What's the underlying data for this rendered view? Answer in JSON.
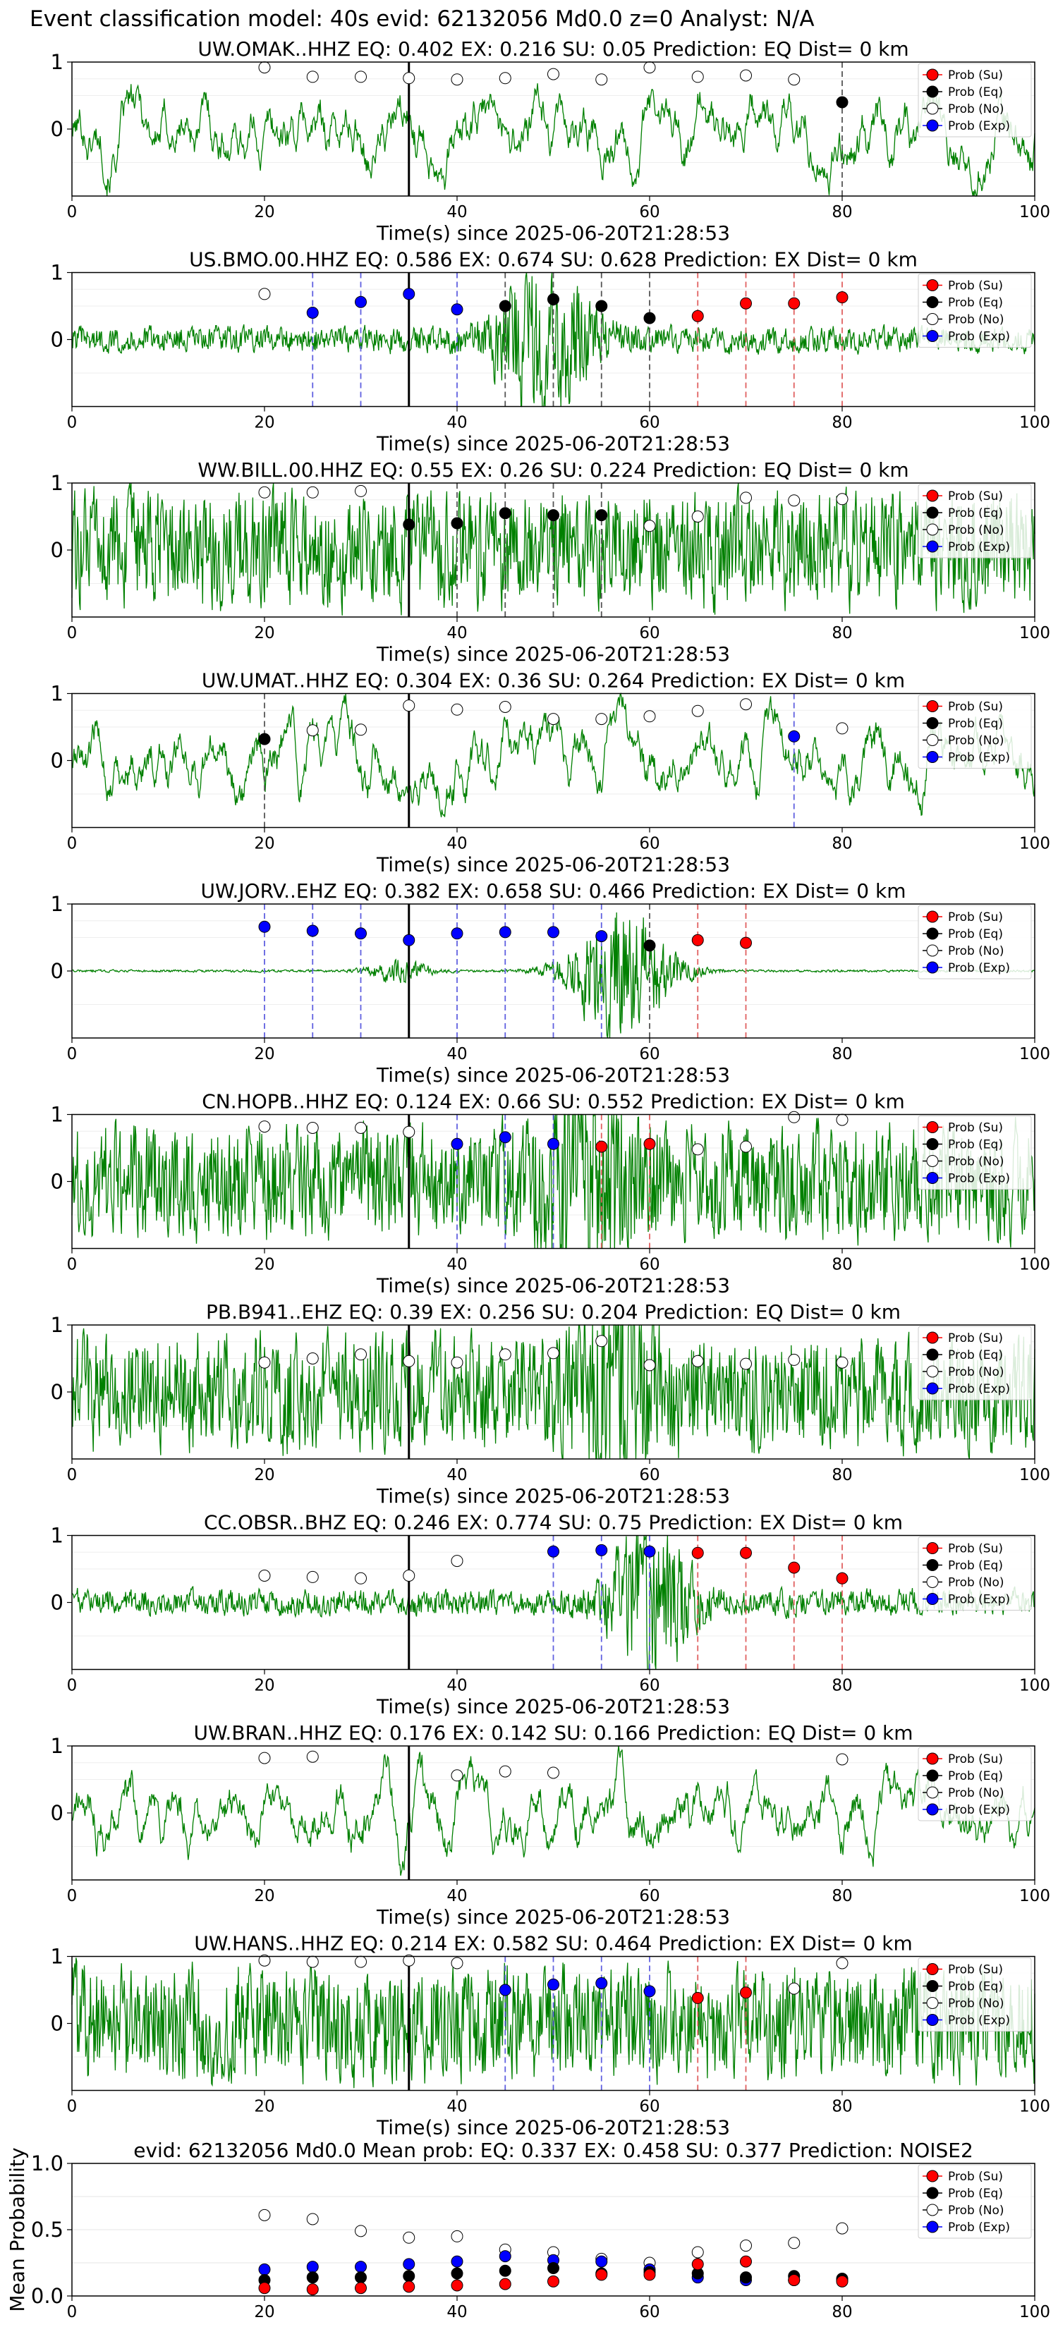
{
  "figure": {
    "suptitle": "Event classification model: 40s evid: 62132056 Md0.0 z=0 Analyst: N/A"
  },
  "legend_labels": [
    "Prob (Su)",
    "Prob (Eq)",
    "Prob (No)",
    "Prob (Exp)"
  ],
  "colors": {
    "waveform": "#008000",
    "su": "#ff0000",
    "eq": "#000000",
    "no": "#ffffff",
    "exp": "#0000ff",
    "su_line": "#e06060",
    "eq_line": "#555555",
    "exp_line": "#6060e0"
  },
  "chart_data": [
    {
      "type": "line",
      "station": "UW.OMAK..HHZ",
      "title": "UW.OMAK..HHZ   EQ: 0.402  EX: 0.216  SU: 0.05   Prediction: EQ    Dist= 0 km",
      "xlabel": "Time(s) since 2025-06-20T21:28:53",
      "xlim": [
        0,
        100
      ],
      "ylim": [
        -1,
        1
      ],
      "xticks": [
        "0",
        "20",
        "40",
        "60",
        "80",
        "100"
      ],
      "yticks": [
        "1",
        "0"
      ],
      "event_line_x": 35,
      "waveform": {
        "style": "mid",
        "bursts": []
      },
      "points": [
        {
          "x": 20,
          "y": 0.92,
          "cls": "no"
        },
        {
          "x": 25,
          "y": 0.78,
          "cls": "no"
        },
        {
          "x": 30,
          "y": 0.78,
          "cls": "no"
        },
        {
          "x": 35,
          "y": 0.76,
          "cls": "no"
        },
        {
          "x": 40,
          "y": 0.74,
          "cls": "no"
        },
        {
          "x": 45,
          "y": 0.76,
          "cls": "no"
        },
        {
          "x": 50,
          "y": 0.82,
          "cls": "no"
        },
        {
          "x": 55,
          "y": 0.74,
          "cls": "no"
        },
        {
          "x": 60,
          "y": 0.92,
          "cls": "no"
        },
        {
          "x": 65,
          "y": 0.78,
          "cls": "no"
        },
        {
          "x": 70,
          "y": 0.8,
          "cls": "no"
        },
        {
          "x": 75,
          "y": 0.74,
          "cls": "no"
        },
        {
          "x": 80,
          "y": 0.4,
          "cls": "eq"
        }
      ]
    },
    {
      "type": "line",
      "station": "US.BMO.00.HHZ",
      "title": "US.BMO.00.HHZ   EQ: 0.586  EX: 0.674  SU: 0.628   Prediction: EX    Dist= 0 km",
      "xlabel": "Time(s) since 2025-06-20T21:28:53",
      "xlim": [
        0,
        100
      ],
      "ylim": [
        -1,
        1
      ],
      "xticks": [
        "0",
        "20",
        "40",
        "60",
        "80",
        "100"
      ],
      "yticks": [
        "1",
        "0"
      ],
      "event_line_x": 35,
      "waveform": {
        "style": "quiet",
        "bursts": [
          {
            "center": 49,
            "width": 5,
            "amp": 0.9
          }
        ]
      },
      "points": [
        {
          "x": 20,
          "y": 0.68,
          "cls": "no"
        },
        {
          "x": 25,
          "y": 0.4,
          "cls": "exp"
        },
        {
          "x": 30,
          "y": 0.56,
          "cls": "exp"
        },
        {
          "x": 35,
          "y": 0.68,
          "cls": "exp"
        },
        {
          "x": 40,
          "y": 0.45,
          "cls": "exp"
        },
        {
          "x": 45,
          "y": 0.5,
          "cls": "eq"
        },
        {
          "x": 50,
          "y": 0.6,
          "cls": "eq"
        },
        {
          "x": 55,
          "y": 0.5,
          "cls": "eq"
        },
        {
          "x": 60,
          "y": 0.32,
          "cls": "eq"
        },
        {
          "x": 65,
          "y": 0.35,
          "cls": "su"
        },
        {
          "x": 70,
          "y": 0.54,
          "cls": "su"
        },
        {
          "x": 75,
          "y": 0.54,
          "cls": "su"
        },
        {
          "x": 80,
          "y": 0.63,
          "cls": "su"
        }
      ]
    },
    {
      "type": "line",
      "station": "WW.BILL.00.HHZ",
      "title": "WW.BILL.00.HHZ   EQ: 0.55  EX: 0.26  SU: 0.224   Prediction: EQ    Dist= 0 km",
      "xlabel": "Time(s) since 2025-06-20T21:28:53",
      "xlim": [
        0,
        100
      ],
      "ylim": [
        -1,
        1
      ],
      "xticks": [
        "0",
        "20",
        "40",
        "60",
        "80",
        "100"
      ],
      "yticks": [
        "1",
        "0"
      ],
      "event_line_x": 35,
      "waveform": {
        "style": "loud",
        "bursts": []
      },
      "points": [
        {
          "x": 20,
          "y": 0.86,
          "cls": "no"
        },
        {
          "x": 25,
          "y": 0.86,
          "cls": "no"
        },
        {
          "x": 30,
          "y": 0.88,
          "cls": "no"
        },
        {
          "x": 35,
          "y": 0.38,
          "cls": "eq"
        },
        {
          "x": 40,
          "y": 0.4,
          "cls": "eq"
        },
        {
          "x": 45,
          "y": 0.55,
          "cls": "eq"
        },
        {
          "x": 50,
          "y": 0.52,
          "cls": "eq"
        },
        {
          "x": 55,
          "y": 0.52,
          "cls": "eq"
        },
        {
          "x": 60,
          "y": 0.36,
          "cls": "no"
        },
        {
          "x": 65,
          "y": 0.5,
          "cls": "no"
        },
        {
          "x": 70,
          "y": 0.78,
          "cls": "no"
        },
        {
          "x": 75,
          "y": 0.74,
          "cls": "no"
        },
        {
          "x": 80,
          "y": 0.76,
          "cls": "no"
        }
      ]
    },
    {
      "type": "line",
      "station": "UW.UMAT..HHZ",
      "title": "UW.UMAT..HHZ   EQ: 0.304  EX: 0.36  SU: 0.264   Prediction: EX    Dist= 0 km",
      "xlabel": "Time(s) since 2025-06-20T21:28:53",
      "xlim": [
        0,
        100
      ],
      "ylim": [
        -1,
        1
      ],
      "xticks": [
        "0",
        "20",
        "40",
        "60",
        "80",
        "100"
      ],
      "yticks": [
        "1",
        "0"
      ],
      "event_line_x": 35,
      "waveform": {
        "style": "mid",
        "bursts": []
      },
      "points": [
        {
          "x": 20,
          "y": 0.32,
          "cls": "eq"
        },
        {
          "x": 25,
          "y": 0.45,
          "cls": "no"
        },
        {
          "x": 30,
          "y": 0.46,
          "cls": "no"
        },
        {
          "x": 35,
          "y": 0.82,
          "cls": "no"
        },
        {
          "x": 40,
          "y": 0.76,
          "cls": "no"
        },
        {
          "x": 45,
          "y": 0.8,
          "cls": "no"
        },
        {
          "x": 50,
          "y": 0.62,
          "cls": "no"
        },
        {
          "x": 55,
          "y": 0.62,
          "cls": "no"
        },
        {
          "x": 60,
          "y": 0.66,
          "cls": "no"
        },
        {
          "x": 65,
          "y": 0.74,
          "cls": "no"
        },
        {
          "x": 70,
          "y": 0.84,
          "cls": "no"
        },
        {
          "x": 75,
          "y": 0.36,
          "cls": "exp"
        },
        {
          "x": 80,
          "y": 0.48,
          "cls": "no"
        }
      ]
    },
    {
      "type": "line",
      "station": "UW.JORV..EHZ",
      "title": "UW.JORV..EHZ   EQ: 0.382  EX: 0.658  SU: 0.466   Prediction: EX    Dist= 0 km",
      "xlabel": "Time(s) since 2025-06-20T21:28:53",
      "xlim": [
        0,
        100
      ],
      "ylim": [
        -1,
        1
      ],
      "xticks": [
        "0",
        "20",
        "40",
        "60",
        "80",
        "100"
      ],
      "yticks": [
        "1",
        "0"
      ],
      "event_line_x": 35,
      "waveform": {
        "style": "flat",
        "bursts": [
          {
            "center": 57,
            "width": 5,
            "amp": 0.9
          },
          {
            "center": 34,
            "width": 3,
            "amp": 0.15
          }
        ]
      },
      "points": [
        {
          "x": 20,
          "y": 0.66,
          "cls": "exp"
        },
        {
          "x": 25,
          "y": 0.6,
          "cls": "exp"
        },
        {
          "x": 30,
          "y": 0.56,
          "cls": "exp"
        },
        {
          "x": 35,
          "y": 0.46,
          "cls": "exp"
        },
        {
          "x": 40,
          "y": 0.56,
          "cls": "exp"
        },
        {
          "x": 45,
          "y": 0.58,
          "cls": "exp"
        },
        {
          "x": 50,
          "y": 0.58,
          "cls": "exp"
        },
        {
          "x": 55,
          "y": 0.52,
          "cls": "exp"
        },
        {
          "x": 60,
          "y": 0.38,
          "cls": "eq"
        },
        {
          "x": 65,
          "y": 0.46,
          "cls": "su"
        },
        {
          "x": 70,
          "y": 0.42,
          "cls": "su"
        }
      ]
    },
    {
      "type": "line",
      "station": "CN.HOPB..HHZ",
      "title": "CN.HOPB..HHZ   EQ: 0.124  EX: 0.66  SU: 0.552   Prediction: EX    Dist= 0 km",
      "xlabel": "Time(s) since 2025-06-20T21:28:53",
      "xlim": [
        0,
        100
      ],
      "ylim": [
        -1,
        1
      ],
      "xticks": [
        "0",
        "20",
        "40",
        "60",
        "80",
        "100"
      ],
      "yticks": [
        "1",
        "0"
      ],
      "event_line_x": 35,
      "waveform": {
        "style": "loud",
        "bursts": [
          {
            "center": 53,
            "width": 4,
            "amp": 1.0
          }
        ]
      },
      "points": [
        {
          "x": 20,
          "y": 0.82,
          "cls": "no"
        },
        {
          "x": 25,
          "y": 0.8,
          "cls": "no"
        },
        {
          "x": 30,
          "y": 0.8,
          "cls": "no"
        },
        {
          "x": 35,
          "y": 0.74,
          "cls": "no"
        },
        {
          "x": 40,
          "y": 0.56,
          "cls": "exp"
        },
        {
          "x": 45,
          "y": 0.66,
          "cls": "exp"
        },
        {
          "x": 50,
          "y": 0.56,
          "cls": "exp"
        },
        {
          "x": 55,
          "y": 0.52,
          "cls": "su"
        },
        {
          "x": 60,
          "y": 0.56,
          "cls": "su"
        },
        {
          "x": 65,
          "y": 0.48,
          "cls": "no"
        },
        {
          "x": 70,
          "y": 0.52,
          "cls": "no"
        },
        {
          "x": 75,
          "y": 0.96,
          "cls": "no"
        },
        {
          "x": 80,
          "y": 0.92,
          "cls": "no"
        }
      ]
    },
    {
      "type": "line",
      "station": "PB.B941..EHZ",
      "title": "PB.B941..EHZ   EQ: 0.39  EX: 0.256  SU: 0.204   Prediction: EQ    Dist= 0 km",
      "xlabel": "Time(s) since 2025-06-20T21:28:53",
      "xlim": [
        0,
        100
      ],
      "ylim": [
        -1,
        1
      ],
      "xticks": [
        "0",
        "20",
        "40",
        "60",
        "80",
        "100"
      ],
      "yticks": [
        "1",
        "0"
      ],
      "event_line_x": 35,
      "waveform": {
        "style": "loud",
        "bursts": [
          {
            "center": 57,
            "width": 4,
            "amp": 0.9
          }
        ]
      },
      "points": [
        {
          "x": 20,
          "y": 0.44,
          "cls": "no"
        },
        {
          "x": 25,
          "y": 0.5,
          "cls": "no"
        },
        {
          "x": 30,
          "y": 0.56,
          "cls": "no"
        },
        {
          "x": 35,
          "y": 0.46,
          "cls": "no"
        },
        {
          "x": 40,
          "y": 0.44,
          "cls": "no"
        },
        {
          "x": 45,
          "y": 0.56,
          "cls": "no"
        },
        {
          "x": 50,
          "y": 0.58,
          "cls": "no"
        },
        {
          "x": 55,
          "y": 0.76,
          "cls": "no"
        },
        {
          "x": 60,
          "y": 0.4,
          "cls": "no"
        },
        {
          "x": 65,
          "y": 0.46,
          "cls": "no"
        },
        {
          "x": 70,
          "y": 0.42,
          "cls": "no"
        },
        {
          "x": 75,
          "y": 0.48,
          "cls": "no"
        },
        {
          "x": 80,
          "y": 0.44,
          "cls": "no"
        }
      ]
    },
    {
      "type": "line",
      "station": "CC.OBSR..BHZ",
      "title": "CC.OBSR..BHZ   EQ: 0.246  EX: 0.774  SU: 0.75   Prediction: EX    Dist= 0 km",
      "xlabel": "Time(s) since 2025-06-20T21:28:53",
      "xlim": [
        0,
        100
      ],
      "ylim": [
        -1,
        1
      ],
      "xticks": [
        "0",
        "20",
        "40",
        "60",
        "80",
        "100"
      ],
      "yticks": [
        "1",
        "0"
      ],
      "event_line_x": 35,
      "waveform": {
        "style": "quiet",
        "bursts": [
          {
            "center": 60,
            "width": 4,
            "amp": 1.0
          }
        ]
      },
      "points": [
        {
          "x": 20,
          "y": 0.4,
          "cls": "no"
        },
        {
          "x": 25,
          "y": 0.38,
          "cls": "no"
        },
        {
          "x": 30,
          "y": 0.36,
          "cls": "no"
        },
        {
          "x": 35,
          "y": 0.4,
          "cls": "no"
        },
        {
          "x": 40,
          "y": 0.62,
          "cls": "no"
        },
        {
          "x": 50,
          "y": 0.76,
          "cls": "exp"
        },
        {
          "x": 55,
          "y": 0.78,
          "cls": "exp"
        },
        {
          "x": 60,
          "y": 0.76,
          "cls": "exp"
        },
        {
          "x": 65,
          "y": 0.74,
          "cls": "su"
        },
        {
          "x": 70,
          "y": 0.74,
          "cls": "su"
        },
        {
          "x": 75,
          "y": 0.52,
          "cls": "su"
        },
        {
          "x": 80,
          "y": 0.36,
          "cls": "su"
        }
      ]
    },
    {
      "type": "line",
      "station": "UW.BRAN..HHZ",
      "title": "UW.BRAN..HHZ   EQ: 0.176  EX: 0.142  SU: 0.166   Prediction: EQ    Dist= 0 km",
      "xlabel": "Time(s) since 2025-06-20T21:28:53",
      "xlim": [
        0,
        100
      ],
      "ylim": [
        -1,
        1
      ],
      "xticks": [
        "0",
        "20",
        "40",
        "60",
        "80",
        "100"
      ],
      "yticks": [
        "1",
        "0"
      ],
      "event_line_x": 35,
      "waveform": {
        "style": "mid",
        "bursts": []
      },
      "points": [
        {
          "x": 20,
          "y": 0.82,
          "cls": "no"
        },
        {
          "x": 25,
          "y": 0.84,
          "cls": "no"
        },
        {
          "x": 40,
          "y": 0.56,
          "cls": "no"
        },
        {
          "x": 45,
          "y": 0.62,
          "cls": "no"
        },
        {
          "x": 50,
          "y": 0.6,
          "cls": "no"
        },
        {
          "x": 80,
          "y": 0.8,
          "cls": "no"
        }
      ]
    },
    {
      "type": "line",
      "station": "UW.HANS..HHZ",
      "title": "UW.HANS..HHZ   EQ: 0.214  EX: 0.582  SU: 0.464   Prediction: EX    Dist= 0 km",
      "xlabel": "Time(s) since 2025-06-20T21:28:53",
      "xlim": [
        0,
        100
      ],
      "ylim": [
        -1,
        1
      ],
      "xticks": [
        "0",
        "20",
        "40",
        "60",
        "80",
        "100"
      ],
      "yticks": [
        "1",
        "0"
      ],
      "event_line_x": 35,
      "waveform": {
        "style": "loud",
        "bursts": []
      },
      "points": [
        {
          "x": 20,
          "y": 0.94,
          "cls": "no"
        },
        {
          "x": 25,
          "y": 0.92,
          "cls": "no"
        },
        {
          "x": 30,
          "y": 0.92,
          "cls": "no"
        },
        {
          "x": 35,
          "y": 0.94,
          "cls": "no"
        },
        {
          "x": 40,
          "y": 0.9,
          "cls": "no"
        },
        {
          "x": 45,
          "y": 0.5,
          "cls": "exp"
        },
        {
          "x": 50,
          "y": 0.58,
          "cls": "exp"
        },
        {
          "x": 55,
          "y": 0.6,
          "cls": "exp"
        },
        {
          "x": 60,
          "y": 0.48,
          "cls": "exp"
        },
        {
          "x": 65,
          "y": 0.38,
          "cls": "su"
        },
        {
          "x": 70,
          "y": 0.46,
          "cls": "su"
        },
        {
          "x": 75,
          "y": 0.52,
          "cls": "no"
        },
        {
          "x": 80,
          "y": 0.9,
          "cls": "no"
        }
      ]
    },
    {
      "type": "scatter",
      "station": "mean",
      "title": "evid: 62132056  Md0.0   Mean prob:   EQ: 0.337  EX: 0.458  SU: 0.377   Prediction: NOISE2",
      "xlabel": "",
      "ylabel": "Mean Probability",
      "xlim": [
        0,
        100
      ],
      "ylim": [
        0,
        1
      ],
      "xticks": [
        "0",
        "20",
        "40",
        "60",
        "80",
        "100"
      ],
      "yticks": [
        "1.0",
        "0.5",
        "0.0"
      ],
      "x": [
        20,
        25,
        30,
        35,
        40,
        45,
        50,
        55,
        60,
        65,
        70,
        75,
        80
      ],
      "series": [
        {
          "name": "Prob (No)",
          "cls": "no",
          "values": [
            0.61,
            0.58,
            0.49,
            0.44,
            0.45,
            0.35,
            0.33,
            0.28,
            0.25,
            0.33,
            0.38,
            0.4,
            0.51
          ]
        },
        {
          "name": "Prob (Exp)",
          "cls": "exp",
          "values": [
            0.2,
            0.22,
            0.22,
            0.24,
            0.26,
            0.3,
            0.27,
            0.26,
            0.2,
            0.14,
            0.12,
            0.12,
            0.12
          ]
        },
        {
          "name": "Prob (Eq)",
          "cls": "eq",
          "values": [
            0.12,
            0.14,
            0.14,
            0.15,
            0.17,
            0.19,
            0.21,
            0.17,
            0.18,
            0.17,
            0.14,
            0.15,
            0.13
          ]
        },
        {
          "name": "Prob (Su)",
          "cls": "su",
          "values": [
            0.06,
            0.05,
            0.06,
            0.07,
            0.08,
            0.09,
            0.11,
            0.16,
            0.16,
            0.24,
            0.26,
            0.12,
            0.11
          ]
        }
      ]
    }
  ]
}
